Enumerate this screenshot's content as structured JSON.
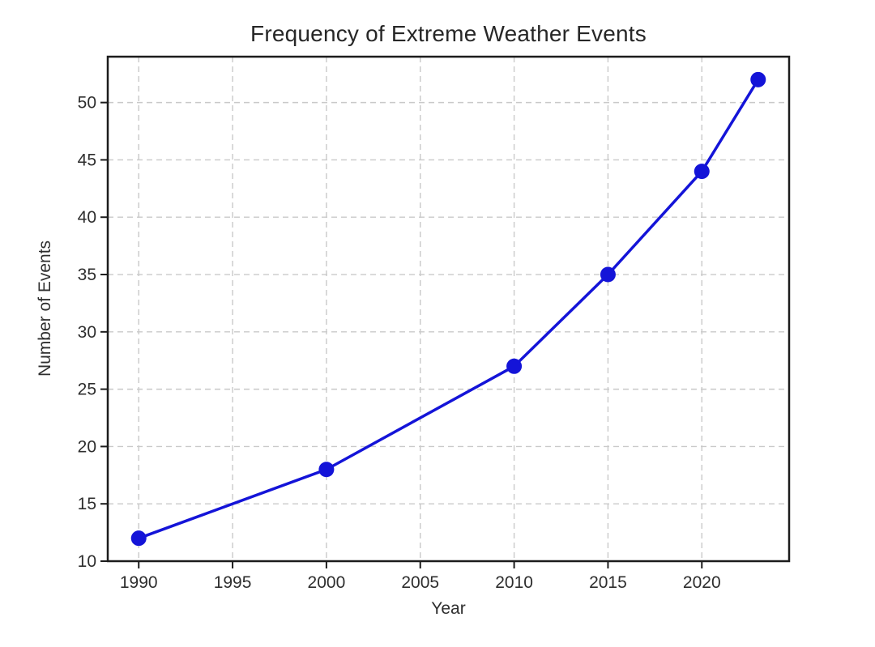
{
  "chart_data": {
    "type": "line",
    "title": "Frequency of Extreme Weather Events",
    "xlabel": "Year",
    "ylabel": "Number of Events",
    "x": [
      1990,
      2000,
      2010,
      2015,
      2020,
      2023
    ],
    "values": [
      12,
      18,
      27,
      35,
      44,
      52
    ],
    "xticks": [
      1990,
      1995,
      2000,
      2005,
      2010,
      2015,
      2020
    ],
    "yticks": [
      10,
      15,
      20,
      25,
      30,
      35,
      40,
      45,
      50
    ],
    "xlim": [
      1988.35,
      2024.65
    ],
    "ylim": [
      10,
      54
    ],
    "grid": true,
    "grid_line_style": "dashed",
    "legend_position": "none",
    "line_color": "#1414d8",
    "marker": "circle",
    "marker_color": "#1414d8",
    "grid_color": "#c9c9c9",
    "spine_color": "#1c1c1c"
  }
}
